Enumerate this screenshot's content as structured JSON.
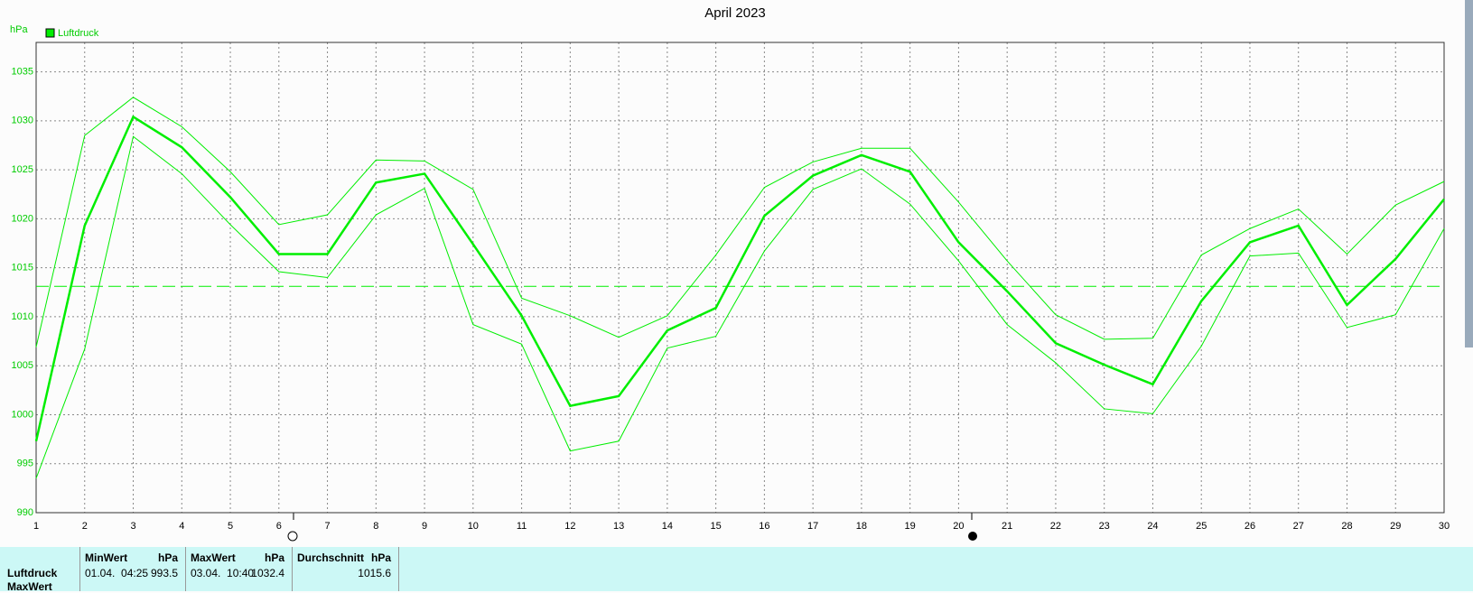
{
  "chart_data": {
    "type": "line",
    "title": "April 2023",
    "y_unit": "hPa",
    "x": [
      1,
      2,
      3,
      4,
      5,
      6,
      7,
      8,
      9,
      10,
      11,
      12,
      13,
      14,
      15,
      16,
      17,
      18,
      19,
      20,
      21,
      22,
      23,
      24,
      25,
      26,
      27,
      28,
      29,
      30
    ],
    "xlim": [
      1,
      30
    ],
    "xticks": [
      1,
      2,
      3,
      4,
      5,
      6,
      7,
      8,
      9,
      10,
      11,
      12,
      13,
      14,
      15,
      16,
      17,
      18,
      19,
      20,
      21,
      22,
      23,
      24,
      25,
      26,
      27,
      28,
      29,
      30
    ],
    "ylim": [
      990,
      1038
    ],
    "yticks": [
      990,
      995,
      1000,
      1005,
      1010,
      1015,
      1020,
      1025,
      1030,
      1035
    ],
    "grid": true,
    "color": "#00ee00",
    "reference_line": 1013.1,
    "series": [
      {
        "name": "Luftdruck",
        "color": "#00ee00",
        "values": [
          997.3,
          1019.3,
          1030.4,
          1027.3,
          1022.2,
          1016.4,
          1016.4,
          1023.7,
          1024.6,
          1017.4,
          1010.1,
          1000.9,
          1001.9,
          1008.6,
          1010.9,
          1020.3,
          1024.4,
          1026.5,
          1024.8,
          1017.6,
          1012.6,
          1007.3,
          1005.1,
          1003.1,
          1011.6,
          1017.6,
          1019.3,
          1011.2,
          1015.9,
          1022.0
        ]
      },
      {
        "color": "#00ee00",
        "values": [
          1006.9,
          1028.5,
          1032.4,
          1029.4,
          1024.8,
          1019.4,
          1020.4,
          1026.0,
          1025.9,
          1023.0,
          1011.9,
          1010.1,
          1007.9,
          1010.1,
          1016.3,
          1023.2,
          1025.8,
          1027.2,
          1027.2,
          1021.7,
          1015.7,
          1010.2,
          1007.7,
          1007.8,
          1016.3,
          1019.0,
          1021.0,
          1016.4,
          1021.4,
          1023.8
        ]
      },
      {
        "color": "#00ee00",
        "values": [
          993.5,
          1006.7,
          1028.4,
          1024.6,
          1019.4,
          1014.6,
          1014.0,
          1020.4,
          1023.1,
          1009.2,
          1007.2,
          996.3,
          997.3,
          1006.8,
          1008.0,
          1016.7,
          1023.0,
          1025.1,
          1021.5,
          1015.7,
          1009.2,
          1005.3,
          1000.6,
          1000.1,
          1007.0,
          1016.2,
          1016.5,
          1008.9,
          1010.2,
          1019.0
        ]
      }
    ]
  },
  "table": {
    "columns": [
      {
        "label": "MinWert",
        "unit": "hPa"
      },
      {
        "label": "MaxWert",
        "unit": "hPa"
      },
      {
        "label": "Durchschnitt",
        "unit": "hPa"
      }
    ],
    "rows": [
      {
        "label": "Luftdruck",
        "cells": [
          [
            "01.04.  04:25",
            "993.5"
          ],
          [
            "03.04.  10:40",
            "1032.4"
          ],
          [
            "",
            "1015.6"
          ]
        ]
      },
      {
        "label": "MaxWert"
      }
    ]
  }
}
